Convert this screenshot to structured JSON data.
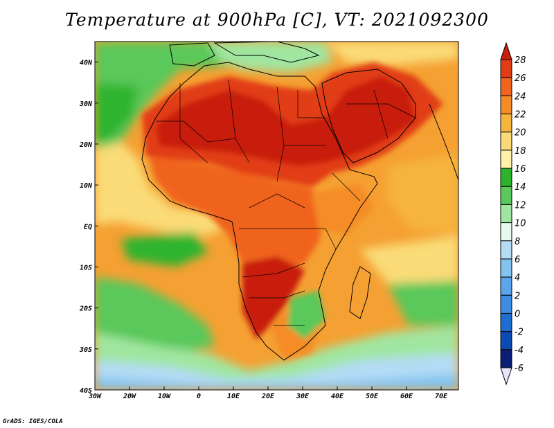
{
  "title": "Temperature at 900hPa [C], VT: 2021092300",
  "credit": "GrADS: IGES/COLA",
  "map": {
    "lon_labels": [
      "30W",
      "20W",
      "10W",
      "0",
      "10E",
      "20E",
      "30E",
      "40E",
      "50E",
      "60E",
      "70E"
    ],
    "lat_labels": [
      "40N",
      "30N",
      "20N",
      "10N",
      "EQ",
      "10S",
      "20S",
      "30S",
      "40S"
    ],
    "lon_range": [
      -30,
      75
    ],
    "lat_range": [
      -40,
      45
    ],
    "field": "temperature at 900 hPa (C)"
  },
  "colorbar": {
    "labels": [
      "28",
      "26",
      "24",
      "22",
      "20",
      "18",
      "16",
      "14",
      "12",
      "10",
      "8",
      "6",
      "4",
      "2",
      "0",
      "-2",
      "-4",
      "-6"
    ],
    "colors": [
      "#c81e0a",
      "#e13c14",
      "#f0641e",
      "#f58c28",
      "#f5b43c",
      "#fada78",
      "#fff0aa",
      "#2db42d",
      "#5ac85a",
      "#a0e6a0",
      "#e6faf0",
      "#b4dcf5",
      "#82c3f0",
      "#5aa5eb",
      "#3c8ce1",
      "#1e6ed2",
      "#0a4bb4",
      "#0a1e78",
      "#e6e6fa"
    ]
  },
  "colors": {
    "hot": "#d72814",
    "ocean_warm": "#f5a032",
    "ocean_mild": "#fadc78",
    "cool_green": "#5ac85a",
    "cold_blue": "#5aa5eb"
  }
}
